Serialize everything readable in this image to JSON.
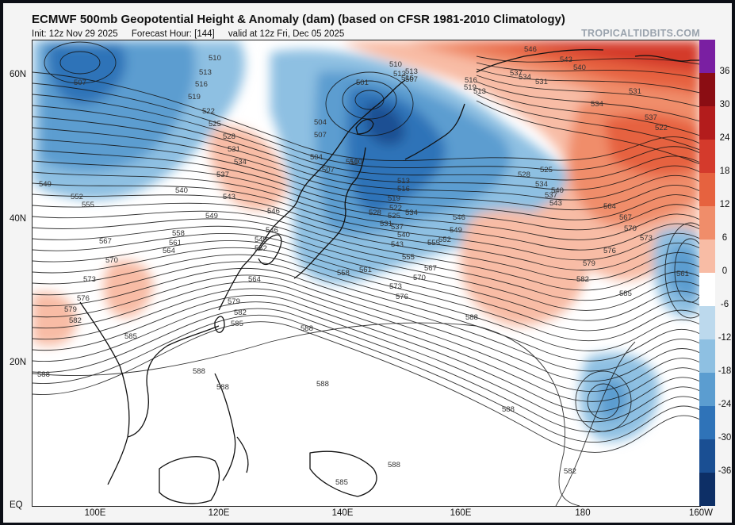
{
  "title": "ECMWF 500mb Geopotential Height & Anomaly (dam) (based on CFSR 1981-2010 Climatology)",
  "subtitle": {
    "init": "Init: 12z Nov 29 2025",
    "forecast_hour": "Forecast Hour: [144]",
    "valid": "valid at 12z Fri, Dec 05 2025"
  },
  "brand": "TROPICALTIDBITS.COM",
  "axes": {
    "lat_labels": [
      "60N",
      "40N",
      "20N",
      "EQ"
    ],
    "lon_labels": [
      "100E",
      "120E",
      "140E",
      "160E",
      "180",
      "160W"
    ]
  },
  "colorbar": {
    "labels": [
      "36",
      "30",
      "24",
      "18",
      "12",
      "6",
      "0",
      "-6",
      "-12",
      "-18",
      "-24",
      "-30",
      "-36"
    ],
    "colors": [
      "#7a1fa2",
      "#8b0d13",
      "#b31c1c",
      "#d43a2c",
      "#e6623f",
      "#f08d6a",
      "#f8bca5",
      "#ffffff",
      "#bcd9ed",
      "#8ec0e2",
      "#5b9dd0",
      "#2f73b8",
      "#1a4f93",
      "#0d2f66"
    ]
  },
  "contour_labels": {
    "508_510_513": [
      "510",
      "513",
      "516",
      "519",
      "507",
      "510",
      "513",
      "501",
      "504",
      "507",
      "510",
      "513",
      "516"
    ],
    "north": [
      "522",
      "525",
      "528",
      "531",
      "534",
      "537",
      "540",
      "543",
      "546",
      "549"
    ],
    "west": [
      "549",
      "552",
      "555",
      "558",
      "561",
      "564",
      "567",
      "570",
      "573",
      "576",
      "579",
      "582",
      "585",
      "588"
    ],
    "japan": [
      "504",
      "507",
      "510",
      "513",
      "516",
      "519",
      "522",
      "525",
      "528",
      "531",
      "534",
      "537",
      "540",
      "543",
      "546",
      "549",
      "552",
      "555",
      "558",
      "561",
      "564",
      "567",
      "570",
      "573",
      "576",
      "579",
      "582",
      "585",
      "588"
    ],
    "pacific": [
      "525",
      "528",
      "534",
      "537",
      "540",
      "543",
      "546",
      "549",
      "552",
      "555",
      "564",
      "567",
      "570",
      "573",
      "576",
      "579",
      "582",
      "585",
      "588",
      "561"
    ],
    "arctic": [
      "546",
      "543",
      "540",
      "537",
      "534",
      "531",
      "531",
      "534",
      "537",
      "522",
      "516",
      "519",
      "513",
      "507"
    ],
    "south": [
      "588",
      "588",
      "588",
      "588",
      "588",
      "585",
      "582"
    ]
  }
}
